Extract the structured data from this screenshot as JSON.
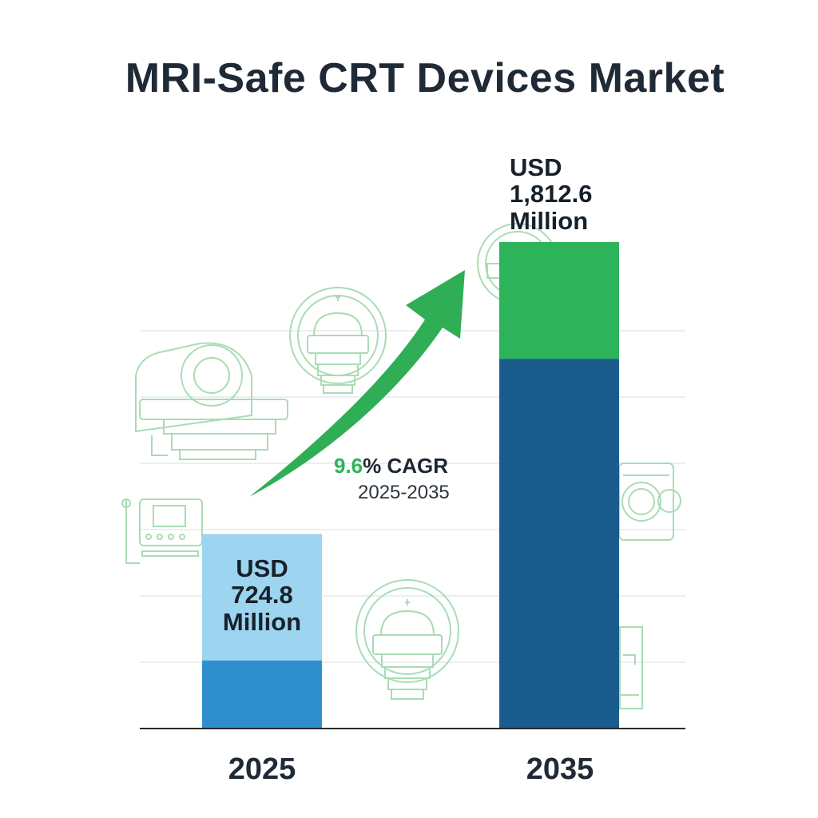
{
  "chart_data": {
    "type": "bar",
    "title": "MRI-Safe CRT Devices Market",
    "categories": [
      "2025",
      "2035"
    ],
    "values": [
      724.8,
      1812.6
    ],
    "value_labels": [
      {
        "prefix": "USD",
        "amount": "724.8",
        "unit": "Million"
      },
      {
        "prefix": "USD",
        "amount": "1,812.6",
        "unit": "Million"
      }
    ],
    "xlabel": "",
    "ylabel": "",
    "ylim": [
      0,
      2000
    ],
    "grid": true,
    "legend": "none",
    "annotation": {
      "rate": "9.6",
      "rate_suffix": "% CAGR",
      "period": "2025-2035"
    },
    "colors": {
      "bar_2025_top": "#9dd4ef",
      "bar_2025_bottom": "#2f8fcc",
      "bar_2035_top": "#2db35a",
      "bar_2035_bottom": "#1a5c8e",
      "arrow": "#2fae56",
      "icon_outline": "#a9dcb4",
      "axis": "#2a2a2a",
      "grid": "#e6e9ec"
    }
  }
}
